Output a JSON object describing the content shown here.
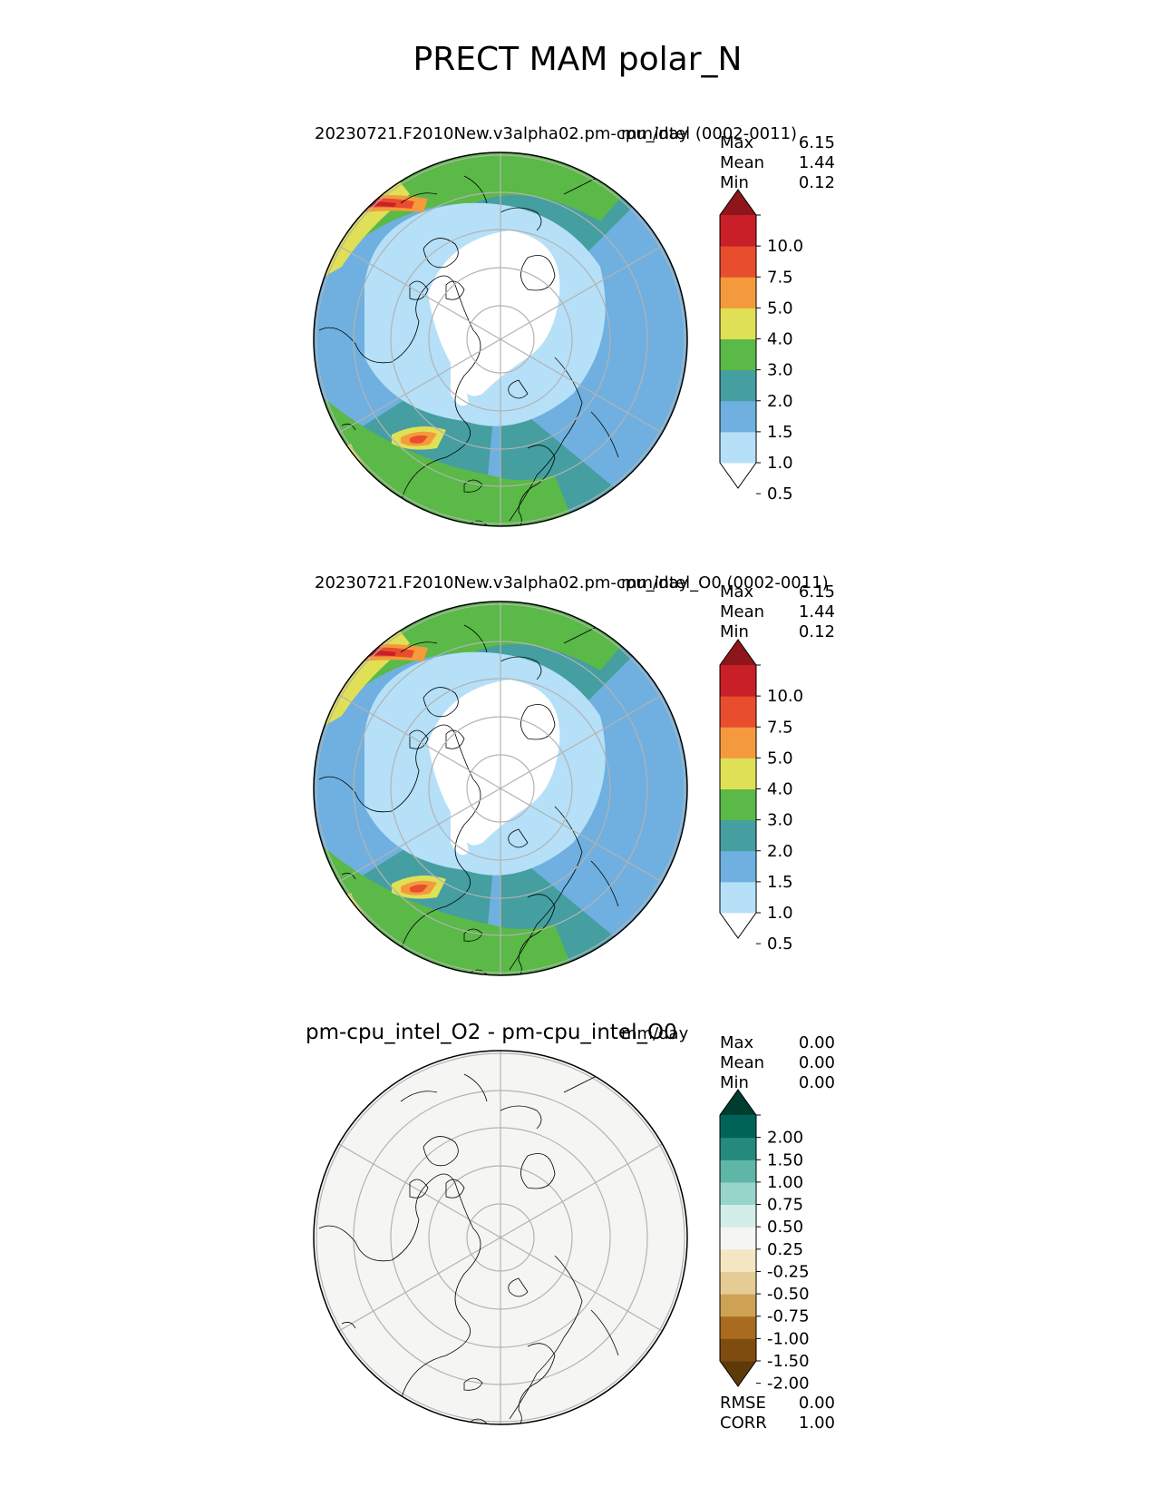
{
  "figure": {
    "title": "PRECT MAM polar_N"
  },
  "colors": {
    "precip_levels": [
      "#ffffff",
      "#b5e0f7",
      "#6fb0e0",
      "#459ea0",
      "#5ab947",
      "#e0e056",
      "#f49a3c",
      "#e84d2e",
      "#c81f28",
      "#8e1519"
    ],
    "diff_levels": [
      "#5c3a0a",
      "#7f4c0f",
      "#a96b1f",
      "#cda254",
      "#e5cc95",
      "#f5e6c3",
      "#f5f5f3",
      "#d3ede9",
      "#97d4c9",
      "#5fb5a6",
      "#248a7b",
      "#006357",
      "#003d31"
    ],
    "background_diff": "#f5f5f3",
    "grid": "#b3b3b3",
    "coast": "#000000"
  },
  "panels": [
    {
      "title": "20230721.F2010New.v3alpha02.pm-cpu_intel (0002-0011)",
      "units": "mm/day",
      "stats": [
        {
          "label": "Max",
          "value": "6.15"
        },
        {
          "label": "Mean",
          "value": "1.44"
        },
        {
          "label": "Min",
          "value": "0.12"
        }
      ],
      "colorbar_ticks": [
        "10.0",
        "7.5",
        "5.0",
        "4.0",
        "3.0",
        "2.0",
        "1.5",
        "1.0",
        "0.5"
      ]
    },
    {
      "title": "20230721.F2010New.v3alpha02.pm-cpu_intel_O0 (0002-0011)",
      "units": "mm/day",
      "stats": [
        {
          "label": "Max",
          "value": "6.15"
        },
        {
          "label": "Mean",
          "value": "1.44"
        },
        {
          "label": "Min",
          "value": "0.12"
        }
      ],
      "colorbar_ticks": [
        "10.0",
        "7.5",
        "5.0",
        "4.0",
        "3.0",
        "2.0",
        "1.5",
        "1.0",
        "0.5"
      ]
    },
    {
      "title": "pm-cpu_intel_O2 - pm-cpu_intel_O0",
      "units": "mm/day",
      "stats": [
        {
          "label": "Max",
          "value": "0.00"
        },
        {
          "label": "Mean",
          "value": "0.00"
        },
        {
          "label": "Min",
          "value": "0.00"
        }
      ],
      "colorbar_ticks": [
        "2.00",
        "1.50",
        "1.00",
        "0.75",
        "0.50",
        "0.25",
        "-0.25",
        "-0.50",
        "-0.75",
        "-1.00",
        "-1.50",
        "-2.00"
      ],
      "bottom_stats": [
        {
          "label": "RMSE",
          "value": "0.00"
        },
        {
          "label": "CORR",
          "value": "1.00"
        }
      ]
    }
  ]
}
